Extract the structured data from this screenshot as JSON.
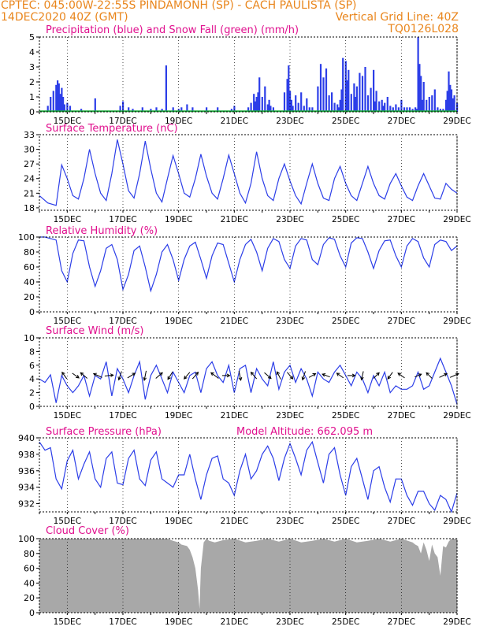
{
  "header": {
    "line1_left": "CPTEC:   045:00W-22:55S   PINDAMONH (SP) - CACH PAULISTA (SP)",
    "line2_left": "14DEC2020 40Z (GMT)",
    "line2_right": "Vertical Grid Line: 40Z",
    "line3_right": "TQ0126L028"
  },
  "colors": {
    "header": "#e9861d",
    "title": "#e0108e",
    "line": "#2c3ee8",
    "precip": "#2c3ee8",
    "snow": "#1aa83a",
    "cloud": "#a8a8a8",
    "arrow": "#000000"
  },
  "x_axis": {
    "ticks": [
      {
        "day": 15,
        "label": "15DEC"
      },
      {
        "day": 17,
        "label": "17DEC"
      },
      {
        "day": 19,
        "label": "19DEC"
      },
      {
        "day": 21,
        "label": "21DEC"
      },
      {
        "day": 23,
        "label": "23DEC"
      },
      {
        "day": 25,
        "label": "25DEC"
      },
      {
        "day": 27,
        "label": "27DEC"
      },
      {
        "day": 29,
        "label": "29DEC"
      }
    ],
    "range": [
      14.0,
      29.0
    ]
  },
  "chart_data": [
    {
      "id": "precip",
      "type": "bar",
      "title": "Precipitation (blue) and Snow Fall (green) (mm/h)",
      "ylim": [
        0,
        5
      ],
      "yticks": [
        0,
        1,
        2,
        3,
        4,
        5
      ],
      "x": [
        14.3,
        14.4,
        14.5,
        14.6,
        14.65,
        14.7,
        14.75,
        14.8,
        14.85,
        14.9,
        15.0,
        15.1,
        15.5,
        16.0,
        16.9,
        17.0,
        17.2,
        17.35,
        17.7,
        18.0,
        18.2,
        18.4,
        18.55,
        18.8,
        19.0,
        19.1,
        19.3,
        19.5,
        20.0,
        20.4,
        20.9,
        21.0,
        21.5,
        21.6,
        21.7,
        21.75,
        21.8,
        21.85,
        21.9,
        22.0,
        22.1,
        22.2,
        22.25,
        22.3,
        22.4,
        22.8,
        22.9,
        22.95,
        23.0,
        23.05,
        23.1,
        23.2,
        23.3,
        23.4,
        23.5,
        23.6,
        23.7,
        23.8,
        24.0,
        24.1,
        24.2,
        24.3,
        24.4,
        24.5,
        24.6,
        24.7,
        24.75,
        24.8,
        24.85,
        24.9,
        25.0,
        25.05,
        25.1,
        25.2,
        25.3,
        25.35,
        25.4,
        25.5,
        25.6,
        25.7,
        25.8,
        25.9,
        26.0,
        26.05,
        26.1,
        26.2,
        26.3,
        26.35,
        26.4,
        26.5,
        26.6,
        26.7,
        26.8,
        26.9,
        27.0,
        27.1,
        27.2,
        27.3,
        27.4,
        27.5,
        27.55,
        27.6,
        27.65,
        27.7,
        27.75,
        27.8,
        27.9,
        28.0,
        28.1,
        28.2,
        28.3,
        28.4,
        28.5,
        28.6,
        28.65,
        28.7,
        28.75,
        28.8,
        28.85,
        28.9,
        29.0
      ],
      "values": [
        0.4,
        1.0,
        1.4,
        1.8,
        2.1,
        1.9,
        1.2,
        1.6,
        1.0,
        0.5,
        0.6,
        0.4,
        0.2,
        0.9,
        0.4,
        0.7,
        0.3,
        0.2,
        0.3,
        0.2,
        0.3,
        0.2,
        3.1,
        0.3,
        0.2,
        0.3,
        0.5,
        0.3,
        0.3,
        0.3,
        0.2,
        0.4,
        0.3,
        0.6,
        1.2,
        0.7,
        1.0,
        1.3,
        2.3,
        1.0,
        1.7,
        0.5,
        0.8,
        0.4,
        0.3,
        1.3,
        2.2,
        3.1,
        1.4,
        0.8,
        0.4,
        1.1,
        0.6,
        1.3,
        0.4,
        0.9,
        0.3,
        0.3,
        1.7,
        3.2,
        2.3,
        2.9,
        1.1,
        1.3,
        0.6,
        0.5,
        0.3,
        0.8,
        1.5,
        3.6,
        3.4,
        2.1,
        2.8,
        1.2,
        1.9,
        1.0,
        1.7,
        2.6,
        2.4,
        3.0,
        1.1,
        1.6,
        2.8,
        0.7,
        1.4,
        0.7,
        0.8,
        0.4,
        0.6,
        1.0,
        0.4,
        0.3,
        0.5,
        0.3,
        0.8,
        0.3,
        0.3,
        0.3,
        0.2,
        0.3,
        0.2,
        5.0,
        3.2,
        2.4,
        0.8,
        2.0,
        0.8,
        1.0,
        1.1,
        1.5,
        0.3,
        0.2,
        0.2,
        0.8,
        1.4,
        2.7,
        1.8,
        1.5,
        0.9,
        1.1,
        0.6
      ],
      "snow": 0
    },
    {
      "id": "temp",
      "type": "line",
      "title": "Surface Temperature (nC)",
      "ylim": [
        17.5,
        33
      ],
      "yticks": [
        18,
        21,
        24,
        27,
        30,
        33
      ],
      "x": [
        14.0,
        14.3,
        14.6,
        14.8,
        15.0,
        15.2,
        15.4,
        15.6,
        15.8,
        16.0,
        16.2,
        16.4,
        16.6,
        16.8,
        17.0,
        17.2,
        17.4,
        17.6,
        17.8,
        18.0,
        18.2,
        18.4,
        18.6,
        18.8,
        19.0,
        19.2,
        19.4,
        19.6,
        19.8,
        20.0,
        20.2,
        20.4,
        20.6,
        20.8,
        21.0,
        21.2,
        21.4,
        21.6,
        21.8,
        22.0,
        22.2,
        22.4,
        22.6,
        22.8,
        23.0,
        23.2,
        23.4,
        23.6,
        23.8,
        24.0,
        24.2,
        24.4,
        24.6,
        24.8,
        25.0,
        25.2,
        25.4,
        25.6,
        25.8,
        26.0,
        26.2,
        26.4,
        26.6,
        26.8,
        27.0,
        27.2,
        27.4,
        27.6,
        27.8,
        28.0,
        28.2,
        28.4,
        28.6,
        28.8,
        29.0
      ],
      "values": [
        20.5,
        19.0,
        18.5,
        26.8,
        24.0,
        20.5,
        19.8,
        24.0,
        30.0,
        25.0,
        21.0,
        19.5,
        25.0,
        32.0,
        27.0,
        21.5,
        20.0,
        25.0,
        31.7,
        26.0,
        21.0,
        19.2,
        24.0,
        28.7,
        25.0,
        21.0,
        20.2,
        24.0,
        29.0,
        24.5,
        21.0,
        19.8,
        24.0,
        28.8,
        25.0,
        21.0,
        19.0,
        23.0,
        29.5,
        24.0,
        20.5,
        19.5,
        24.0,
        27.0,
        23.5,
        20.5,
        18.8,
        23.0,
        27.0,
        23.0,
        20.0,
        19.5,
        24.0,
        26.5,
        23.0,
        20.5,
        19.5,
        23.0,
        26.5,
        23.0,
        20.5,
        19.8,
        23.0,
        25.0,
        22.5,
        20.2,
        19.5,
        22.5,
        25.0,
        22.5,
        20.0,
        19.8,
        23.0,
        21.8,
        21.0
      ]
    },
    {
      "id": "rh",
      "type": "line",
      "title": "Relative Humidity (%)",
      "ylim": [
        0,
        100
      ],
      "yticks": [
        0,
        20,
        40,
        60,
        80,
        100
      ],
      "x": [
        14.0,
        14.2,
        14.4,
        14.6,
        14.8,
        15.0,
        15.2,
        15.4,
        15.6,
        15.8,
        16.0,
        16.2,
        16.4,
        16.6,
        16.8,
        17.0,
        17.2,
        17.4,
        17.6,
        17.8,
        18.0,
        18.2,
        18.4,
        18.6,
        18.8,
        19.0,
        19.2,
        19.4,
        19.6,
        19.8,
        20.0,
        20.2,
        20.4,
        20.6,
        20.8,
        21.0,
        21.2,
        21.4,
        21.6,
        21.8,
        22.0,
        22.2,
        22.4,
        22.6,
        22.8,
        23.0,
        23.2,
        23.4,
        23.6,
        23.8,
        24.0,
        24.2,
        24.4,
        24.6,
        24.8,
        25.0,
        25.2,
        25.4,
        25.6,
        25.8,
        26.0,
        26.2,
        26.4,
        26.6,
        26.8,
        27.0,
        27.2,
        27.4,
        27.6,
        27.8,
        28.0,
        28.2,
        28.4,
        28.6,
        28.8,
        29.0
      ],
      "values": [
        100,
        100,
        98,
        96,
        55,
        40,
        78,
        96,
        95,
        60,
        34,
        55,
        85,
        90,
        70,
        30,
        50,
        82,
        88,
        60,
        28,
        50,
        80,
        90,
        70,
        42,
        70,
        88,
        93,
        70,
        45,
        75,
        92,
        90,
        65,
        40,
        70,
        90,
        97,
        80,
        55,
        85,
        98,
        94,
        70,
        58,
        88,
        98,
        96,
        70,
        63,
        90,
        99,
        97,
        75,
        60,
        92,
        99,
        98,
        80,
        58,
        82,
        95,
        96,
        75,
        60,
        88,
        98,
        94,
        72,
        60,
        90,
        96,
        94,
        82,
        88
      ]
    },
    {
      "id": "wind",
      "type": "line",
      "title": "Surface Wind (m/s)",
      "ylim": [
        0,
        10
      ],
      "yticks": [
        0,
        2,
        4,
        6,
        8,
        10
      ],
      "x": [
        14.0,
        14.2,
        14.4,
        14.6,
        14.8,
        15.0,
        15.2,
        15.4,
        15.6,
        15.8,
        16.0,
        16.2,
        16.4,
        16.6,
        16.8,
        17.0,
        17.2,
        17.4,
        17.6,
        17.8,
        18.0,
        18.2,
        18.4,
        18.6,
        18.8,
        19.0,
        19.2,
        19.4,
        19.6,
        19.8,
        20.0,
        20.2,
        20.4,
        20.6,
        20.8,
        21.0,
        21.2,
        21.4,
        21.6,
        21.8,
        22.0,
        22.2,
        22.4,
        22.6,
        22.8,
        23.0,
        23.2,
        23.4,
        23.6,
        23.8,
        24.0,
        24.2,
        24.4,
        24.6,
        24.8,
        25.0,
        25.2,
        25.4,
        25.6,
        25.8,
        26.0,
        26.2,
        26.4,
        26.6,
        26.8,
        27.0,
        27.2,
        27.4,
        27.6,
        27.8,
        28.0,
        28.2,
        28.4,
        28.6,
        28.8,
        29.0
      ],
      "values": [
        4.0,
        3.5,
        4.6,
        0.5,
        4.5,
        3.0,
        2.0,
        3.0,
        4.5,
        1.5,
        4.5,
        4.0,
        6.5,
        1.5,
        5.5,
        4.0,
        2.0,
        4.5,
        6.5,
        1.0,
        4.5,
        6.0,
        4.0,
        2.0,
        5.0,
        3.5,
        2.0,
        4.5,
        5.0,
        2.0,
        5.5,
        6.5,
        4.5,
        3.5,
        6.0,
        2.0,
        5.5,
        6.0,
        2.0,
        5.5,
        4.0,
        3.0,
        6.5,
        2.5,
        5.0,
        6.0,
        3.5,
        5.5,
        4.0,
        1.5,
        5.0,
        4.0,
        3.5,
        5.0,
        6.0,
        4.5,
        3.0,
        5.0,
        4.0,
        2.0,
        4.5,
        3.0,
        5.0,
        2.0,
        3.0,
        2.5,
        2.5,
        3.0,
        5.0,
        2.5,
        3.0,
        5.0,
        7.0,
        5.0,
        3.0,
        0.3
      ],
      "arrows": [
        {
          "x": 14.9,
          "u": -0.5,
          "v": 0.7
        },
        {
          "x": 15.3,
          "u": 0.7,
          "v": -0.5
        },
        {
          "x": 15.6,
          "u": -0.7,
          "v": 0.6
        },
        {
          "x": 16.1,
          "u": -0.9,
          "v": 0.4
        },
        {
          "x": 16.5,
          "u": 0.9,
          "v": 0.1
        },
        {
          "x": 16.9,
          "u": -0.3,
          "v": -0.9
        },
        {
          "x": 17.3,
          "u": 0.8,
          "v": 0.5
        },
        {
          "x": 17.8,
          "u": -0.2,
          "v": -1.0
        },
        {
          "x": 18.3,
          "u": 0.7,
          "v": 0.6
        },
        {
          "x": 18.7,
          "u": -0.5,
          "v": -0.8
        },
        {
          "x": 19.3,
          "u": -0.6,
          "v": -0.7
        },
        {
          "x": 19.6,
          "u": 0.6,
          "v": 0.7
        },
        {
          "x": 20.3,
          "u": -0.8,
          "v": 0.6
        },
        {
          "x": 20.7,
          "u": 0.8,
          "v": 0.0
        },
        {
          "x": 21.2,
          "u": 0.2,
          "v": -1.0
        },
        {
          "x": 21.7,
          "u": -0.6,
          "v": 0.7
        },
        {
          "x": 22.2,
          "u": 0.7,
          "v": -0.6
        },
        {
          "x": 22.6,
          "u": -0.4,
          "v": 0.8
        },
        {
          "x": 23.0,
          "u": 0.6,
          "v": -0.7
        },
        {
          "x": 23.5,
          "u": -0.3,
          "v": -0.9
        },
        {
          "x": 23.8,
          "u": 0.7,
          "v": 0.4
        },
        {
          "x": 24.3,
          "u": -0.8,
          "v": 0.3
        },
        {
          "x": 24.8,
          "u": -0.7,
          "v": 0.5
        },
        {
          "x": 25.2,
          "u": 0.8,
          "v": 0.0
        },
        {
          "x": 25.6,
          "u": -0.2,
          "v": -0.9
        },
        {
          "x": 26.1,
          "u": 0.6,
          "v": 0.6
        },
        {
          "x": 26.6,
          "u": -0.5,
          "v": -0.7
        },
        {
          "x": 27.0,
          "u": -0.7,
          "v": 0.5
        },
        {
          "x": 27.6,
          "u": 0.7,
          "v": 0.3
        },
        {
          "x": 28.0,
          "u": -0.6,
          "v": 0.6
        },
        {
          "x": 28.5,
          "u": 0.8,
          "v": 0.4
        },
        {
          "x": 28.9,
          "u": 0.9,
          "v": 0.4
        }
      ]
    },
    {
      "id": "pres",
      "type": "line",
      "title": "Surface Pressure (hPa)",
      "title_extra": "Model Altitude: 662.095 m",
      "ylim": [
        931,
        940
      ],
      "yticks": [
        932,
        934,
        936,
        938,
        940
      ],
      "x": [
        14.0,
        14.2,
        14.4,
        14.6,
        14.8,
        15.0,
        15.2,
        15.4,
        15.6,
        15.8,
        16.0,
        16.2,
        16.4,
        16.6,
        16.8,
        17.0,
        17.2,
        17.4,
        17.6,
        17.8,
        18.0,
        18.2,
        18.4,
        18.6,
        18.8,
        19.0,
        19.2,
        19.4,
        19.6,
        19.8,
        20.0,
        20.2,
        20.4,
        20.6,
        20.8,
        21.0,
        21.2,
        21.4,
        21.6,
        21.8,
        22.0,
        22.2,
        22.4,
        22.6,
        22.8,
        23.0,
        23.2,
        23.4,
        23.6,
        23.8,
        24.0,
        24.2,
        24.4,
        24.6,
        24.8,
        25.0,
        25.2,
        25.4,
        25.6,
        25.8,
        26.0,
        26.2,
        26.4,
        26.6,
        26.8,
        27.0,
        27.2,
        27.4,
        27.6,
        27.8,
        28.0,
        28.2,
        28.4,
        28.6,
        28.8,
        29.0
      ],
      "values": [
        939.5,
        938.5,
        938.8,
        935.0,
        933.8,
        937.2,
        938.5,
        935.0,
        936.8,
        938.3,
        935.0,
        934.0,
        937.5,
        938.3,
        934.5,
        934.3,
        937.5,
        938.5,
        935.0,
        934.2,
        937.3,
        938.3,
        935.0,
        934.5,
        934.0,
        935.5,
        935.5,
        938.0,
        935.0,
        932.5,
        935.5,
        937.5,
        937.8,
        935.0,
        934.5,
        933.0,
        936.0,
        938.0,
        935.0,
        936.0,
        938.0,
        939.0,
        937.5,
        934.8,
        937.5,
        939.3,
        937.5,
        935.5,
        938.5,
        939.5,
        937.0,
        934.5,
        938.0,
        938.8,
        935.5,
        933.0,
        936.5,
        937.5,
        935.0,
        932.5,
        936.0,
        936.5,
        934.0,
        932.2,
        935.0,
        935.0,
        933.0,
        931.8,
        933.5,
        933.5,
        932.0,
        931.2,
        933.0,
        932.5,
        931.0,
        933.3
      ]
    },
    {
      "id": "cloud",
      "type": "area",
      "title": "Cloud Cover (%)",
      "ylim": [
        0,
        100
      ],
      "yticks": [
        0,
        20,
        40,
        60,
        80,
        100
      ],
      "x": [
        14.0,
        18.6,
        18.8,
        19.0,
        19.1,
        19.3,
        19.4,
        19.5,
        19.6,
        19.7,
        19.75,
        19.8,
        19.9,
        20.0,
        20.1,
        20.3,
        20.6,
        21.0,
        21.4,
        21.8,
        22.2,
        22.6,
        23.0,
        23.4,
        23.8,
        24.2,
        24.6,
        25.0,
        25.4,
        25.8,
        26.2,
        26.6,
        27.0,
        27.4,
        27.5,
        27.6,
        27.7,
        27.8,
        27.9,
        28.0,
        28.1,
        28.2,
        28.3,
        28.4,
        28.5,
        28.6,
        28.7,
        28.8,
        29.0
      ],
      "values": [
        100,
        100,
        97,
        95,
        92,
        90,
        85,
        75,
        60,
        30,
        5,
        60,
        95,
        100,
        97,
        95,
        98,
        100,
        95,
        97,
        100,
        96,
        100,
        95,
        97,
        100,
        96,
        100,
        95,
        97,
        100,
        96,
        100,
        95,
        92,
        90,
        80,
        95,
        85,
        70,
        92,
        80,
        75,
        50,
        90,
        88,
        96,
        100,
        100
      ]
    }
  ]
}
